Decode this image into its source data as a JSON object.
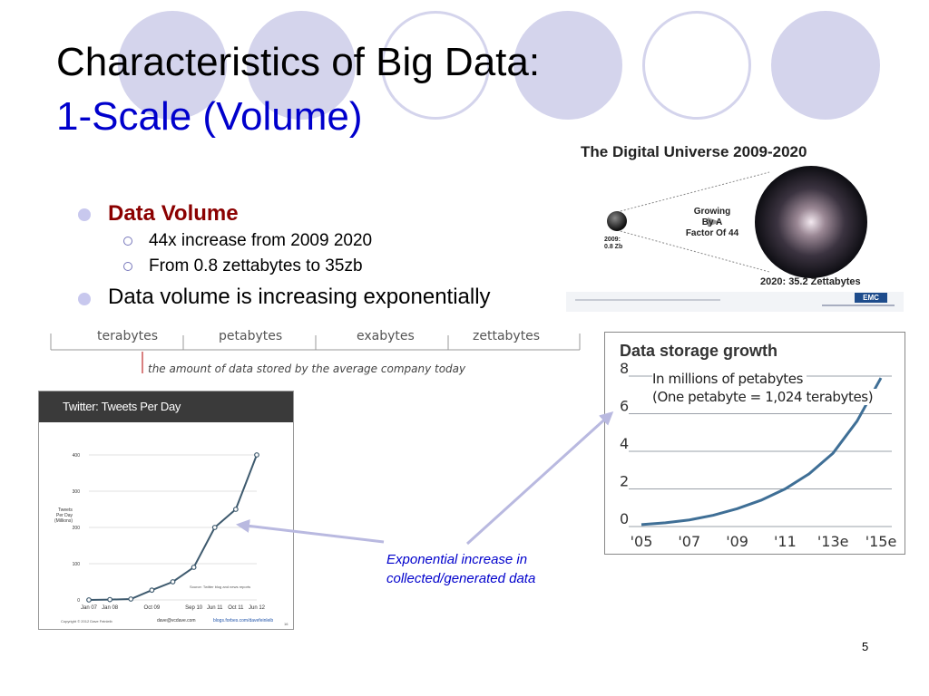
{
  "slide": {
    "title_line1": "Characteristics of Big Data:",
    "title_line2": "1-Scale (Volume)",
    "page_number": "5",
    "colors": {
      "title_blue": "#0000cc",
      "bullet_red": "#8b0000",
      "circle_lavender": "#d4d4ec"
    }
  },
  "bullets": {
    "b1": "Data Volume",
    "b1_sub1": "44x increase from 2009 2020",
    "b1_sub2": "From 0.8 zettabytes to 35zb",
    "b2": "Data volume is increasing exponentially"
  },
  "digital_universe": {
    "title": "The Digital Universe 2009-2020",
    "growth_l1": "Growing",
    "growth_l2": "By A",
    "growth_l3": "Factor Of 44",
    "start_l1": "2009:",
    "start_l2": "0.8 Zb",
    "end_label": "2020: 35.2 Zettabytes",
    "brand": "EMC"
  },
  "scale_bar": {
    "units": [
      "terabytes",
      "petabytes",
      "exabytes",
      "zettabytes"
    ],
    "note": "the amount of data stored by the average company today"
  },
  "twitter_chart": {
    "title": "Twitter: Tweets Per Day",
    "ylabel_l1": "Tweets",
    "ylabel_l2": "Per Day",
    "ylabel_l3": "(Millions)",
    "source": "Source: Twitter blog and news reports",
    "copyright": "Copyright © 2012 Dave Feinleib",
    "email": "dave@vcdave.com",
    "site": "blogs.forbes.com/davefeinleib",
    "slide_num": "16"
  },
  "storage_chart": {
    "title": "Data storage growth",
    "subtitle_l1": "In millions of petabytes",
    "subtitle_l2": "(One petabyte = 1,024 terabytes)"
  },
  "caption": {
    "line1": "Exponential increase in",
    "line2": "collected/generated data"
  },
  "chart_data": [
    {
      "type": "line",
      "title": "Twitter: Tweets Per Day",
      "ylabel": "Tweets Per Day (Millions)",
      "categories": [
        "Jan 07",
        "Jan 08",
        "Oct 09",
        "Sep 10",
        "Jun 11",
        "Oct 11",
        "Jun 12"
      ],
      "x": [
        "Jan 07",
        "Jan 08",
        "Oct 08",
        "Oct 09",
        "Mar 10",
        "Sep 10",
        "Jun 11",
        "Oct 11",
        "Jun 12"
      ],
      "values": [
        0,
        1,
        2.5,
        27,
        50,
        90,
        200,
        250,
        400
      ],
      "yticks": [
        0,
        100,
        200,
        300,
        400
      ],
      "ylim": [
        0,
        400
      ],
      "grid": true
    },
    {
      "type": "line",
      "title": "Data storage growth",
      "categories": [
        "'05",
        "'07",
        "'09",
        "'11",
        "'13e",
        "'15e"
      ],
      "x": [
        2005,
        2006,
        2007,
        2008,
        2009,
        2010,
        2011,
        2012,
        2013,
        2014,
        2015
      ],
      "values": [
        0.1,
        0.2,
        0.35,
        0.6,
        0.95,
        1.4,
        2.0,
        2.8,
        3.9,
        5.6,
        7.9
      ],
      "yticks": [
        0,
        2,
        4,
        6,
        8
      ],
      "ylim": [
        0,
        8
      ],
      "grid": true
    }
  ]
}
